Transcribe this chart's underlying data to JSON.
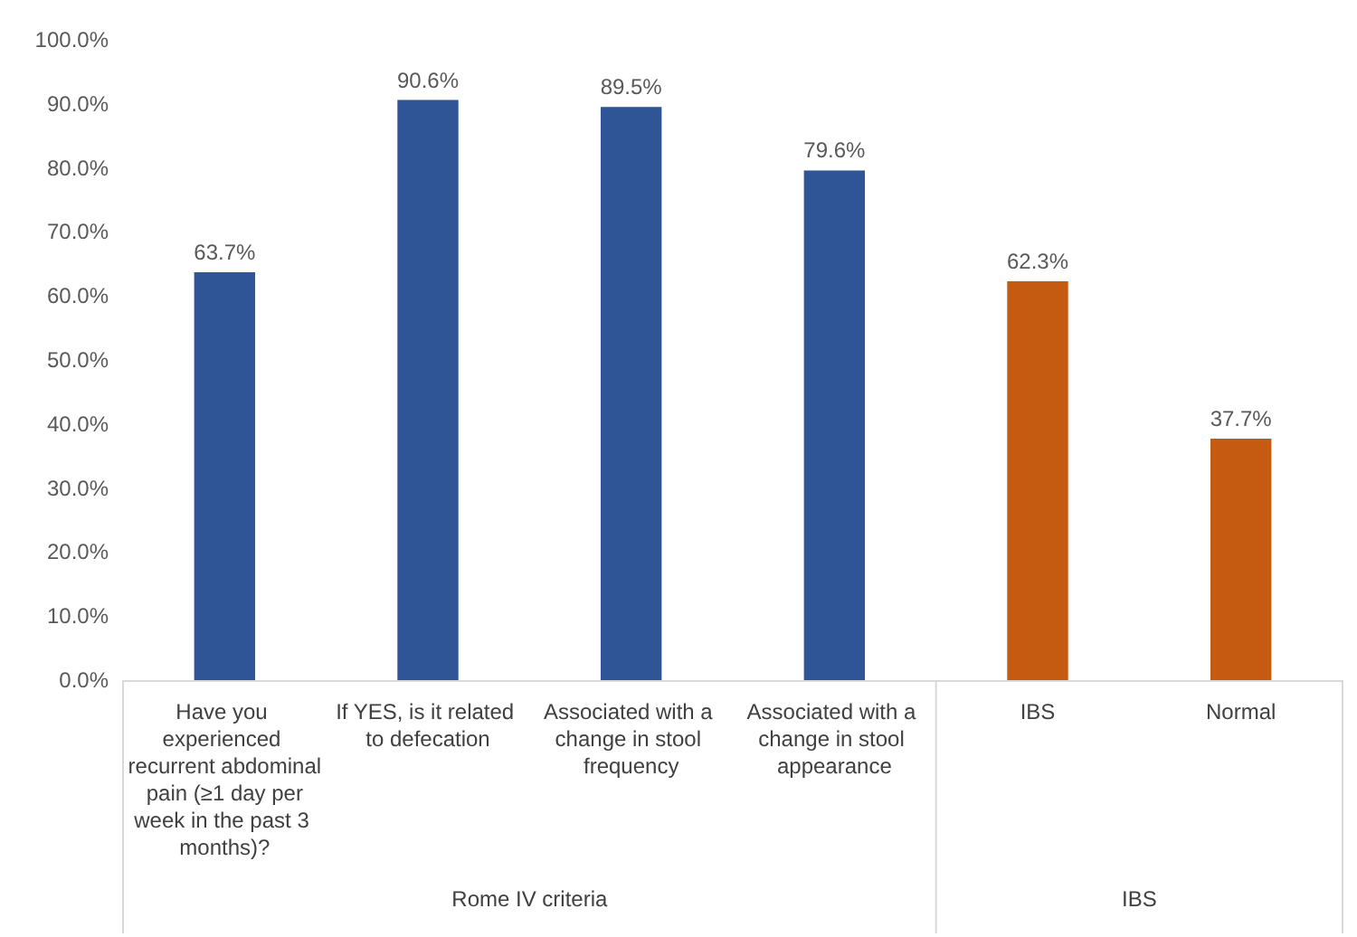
{
  "chart_data": {
    "type": "bar",
    "categories": [
      "Have you experienced recurrent abdominal pain (≥1 day per week in the past 3 months)?",
      "If YES, is it related to defecation",
      "Associated with a change in stool frequency",
      "Associated with a change in stool appearance",
      "IBS",
      "Normal"
    ],
    "values": [
      63.7,
      90.6,
      89.5,
      79.6,
      62.3,
      37.7
    ],
    "colors": [
      "#2f5597",
      "#2f5597",
      "#2f5597",
      "#2f5597",
      "#c55a11",
      "#c55a11"
    ],
    "value_labels": [
      "63.7%",
      "90.6%",
      "89.5%",
      "79.6%",
      "62.3%",
      "37.7%"
    ],
    "ylim": [
      0,
      100
    ],
    "yticks": [
      {
        "value": 0,
        "label": "0.0%"
      },
      {
        "value": 10,
        "label": "10.0%"
      },
      {
        "value": 20,
        "label": "20.0%"
      },
      {
        "value": 30,
        "label": "30.0%"
      },
      {
        "value": 40,
        "label": "40.0%"
      },
      {
        "value": 50,
        "label": "50.0%"
      },
      {
        "value": 60,
        "label": "60.0%"
      },
      {
        "value": 70,
        "label": "70.0%"
      },
      {
        "value": 80,
        "label": "80.0%"
      },
      {
        "value": 90,
        "label": "90.0%"
      },
      {
        "value": 100,
        "label": "100.0%"
      }
    ],
    "annotations": [
      "Rome IV criteria",
      "IBS"
    ]
  }
}
